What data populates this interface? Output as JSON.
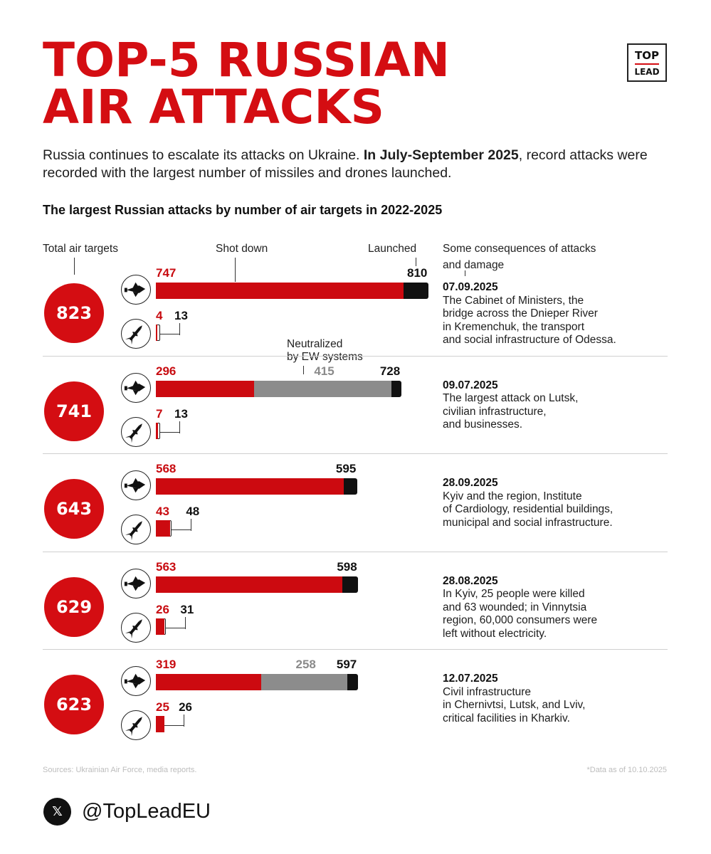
{
  "title_lines": [
    "TOP-5 RUSSIAN",
    "AIR ATTACKS"
  ],
  "logo": {
    "line1": "TOP",
    "line2": "LEAD"
  },
  "intro": {
    "part1": "Russia continues to escalate its attacks on Ukraine. ",
    "bold": "In July-September 2025",
    "part2": ", record attacks were recorded with the largest number of missiles and drones launched."
  },
  "subtitle": "The largest Russian attacks by number of air targets in 2022-2025",
  "headers": {
    "total": "Total air targets",
    "shot_down": "Shot down",
    "launched": "Launched",
    "consequences_line1": "Some consequences of attacks",
    "consequences_line2": "and damage",
    "neutralized_line1": "Neutralized",
    "neutralized_line2": "by EW systems"
  },
  "colors": {
    "red": "#cc0a10",
    "gray": "#8c8c8c",
    "black": "#111111"
  },
  "icons": {
    "drone": "drone-icon",
    "missile": "missile-icon",
    "social": "x-logo-icon"
  },
  "chart_data": {
    "type": "bar",
    "title": "The largest Russian attacks by number of air targets in 2022-2025",
    "scale_max": 810,
    "series": [
      {
        "name": "Shot down",
        "color": "#cc0a10"
      },
      {
        "name": "Neutralized by EW systems",
        "color": "#8c8c8c"
      },
      {
        "name": "Launched",
        "color": "#111111"
      }
    ],
    "attacks": [
      {
        "total": "823",
        "date": "07.09.2025",
        "drones": {
          "shot": 747,
          "ew": null,
          "launched": 810
        },
        "missiles": {
          "shot": 4,
          "launched": 13
        },
        "lines": [
          "The Cabinet of Ministers, the",
          "bridge across the Dnieper River",
          "in Kremenchuk, the transport",
          "and social infrastructure of Odessa."
        ]
      },
      {
        "total": "741",
        "date": "09.07.2025",
        "drones": {
          "shot": 296,
          "ew": 415,
          "launched": 728
        },
        "missiles": {
          "shot": 7,
          "launched": 13
        },
        "lines": [
          "The largest attack on Lutsk,",
          "civilian infrastructure,",
          "and businesses."
        ]
      },
      {
        "total": "643",
        "date": "28.09.2025",
        "drones": {
          "shot": 568,
          "ew": null,
          "launched": 595
        },
        "missiles": {
          "shot": 43,
          "launched": 48
        },
        "lines": [
          "Kyiv and the region, Institute",
          "of Cardiology, residential buildings,",
          "municipal and social infrastructure."
        ]
      },
      {
        "total": "629",
        "date": "28.08.2025",
        "drones": {
          "shot": 563,
          "ew": null,
          "launched": 598
        },
        "missiles": {
          "shot": 26,
          "launched": 31
        },
        "lines": [
          "In Kyiv, 25 people were killed",
          "and 63 wounded; in Vinnytsia",
          "region, 60,000 consumers were",
          "left without electricity."
        ]
      },
      {
        "total": "623",
        "date": "12.07.2025",
        "drones": {
          "shot": 319,
          "ew": 258,
          "launched": 597
        },
        "missiles": {
          "shot": 25,
          "launched": 26
        },
        "lines": [
          "Civil infrastructure",
          "in Chernivtsi, Lutsk, and Lviv,",
          "critical facilities in Kharkiv."
        ]
      }
    ]
  },
  "footer": {
    "sources": "Sources: Ukrainian Air Force, media reports.",
    "data_note": "*Data as of 10.10.2025",
    "handle": "@TopLeadEU",
    "x_glyph": "𝕏"
  }
}
